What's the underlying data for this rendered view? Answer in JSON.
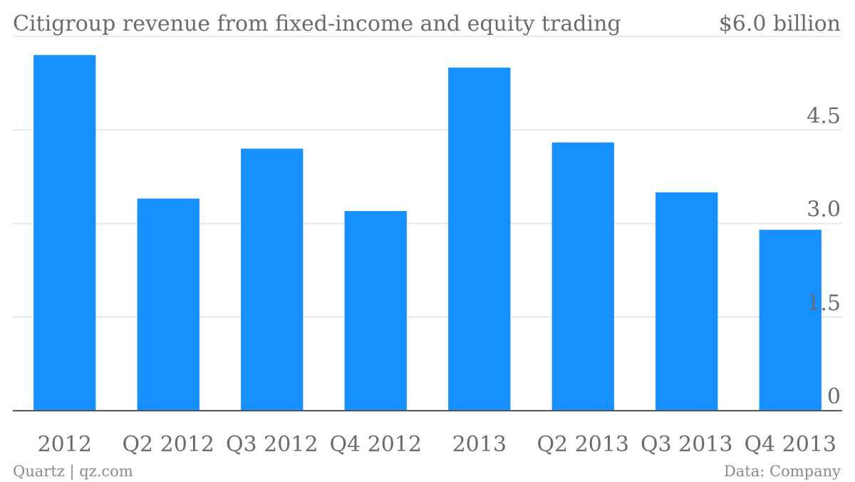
{
  "chart_data": {
    "type": "bar",
    "title": "Citigroup revenue from fixed-income and equity trading",
    "unit_label": "$6.0 billion",
    "categories": [
      "2012",
      "Q2 2012",
      "Q3 2012",
      "Q4 2012",
      "2013",
      "Q2 2013",
      "Q3 2013",
      "Q4 2013"
    ],
    "values": [
      5.7,
      3.4,
      4.2,
      3.2,
      5.5,
      4.3,
      3.5,
      2.9
    ],
    "ylim": [
      0,
      6.0
    ],
    "yticks": [
      {
        "value": 1.5,
        "label": "1.5"
      },
      {
        "value": 3.0,
        "label": "3.0"
      },
      {
        "value": 4.5,
        "label": "4.5"
      },
      {
        "value": 0,
        "label": "0"
      }
    ],
    "grid": true,
    "bar_color": "#168fff",
    "source": "Data: Company",
    "credit": "Quartz | qz.com"
  }
}
